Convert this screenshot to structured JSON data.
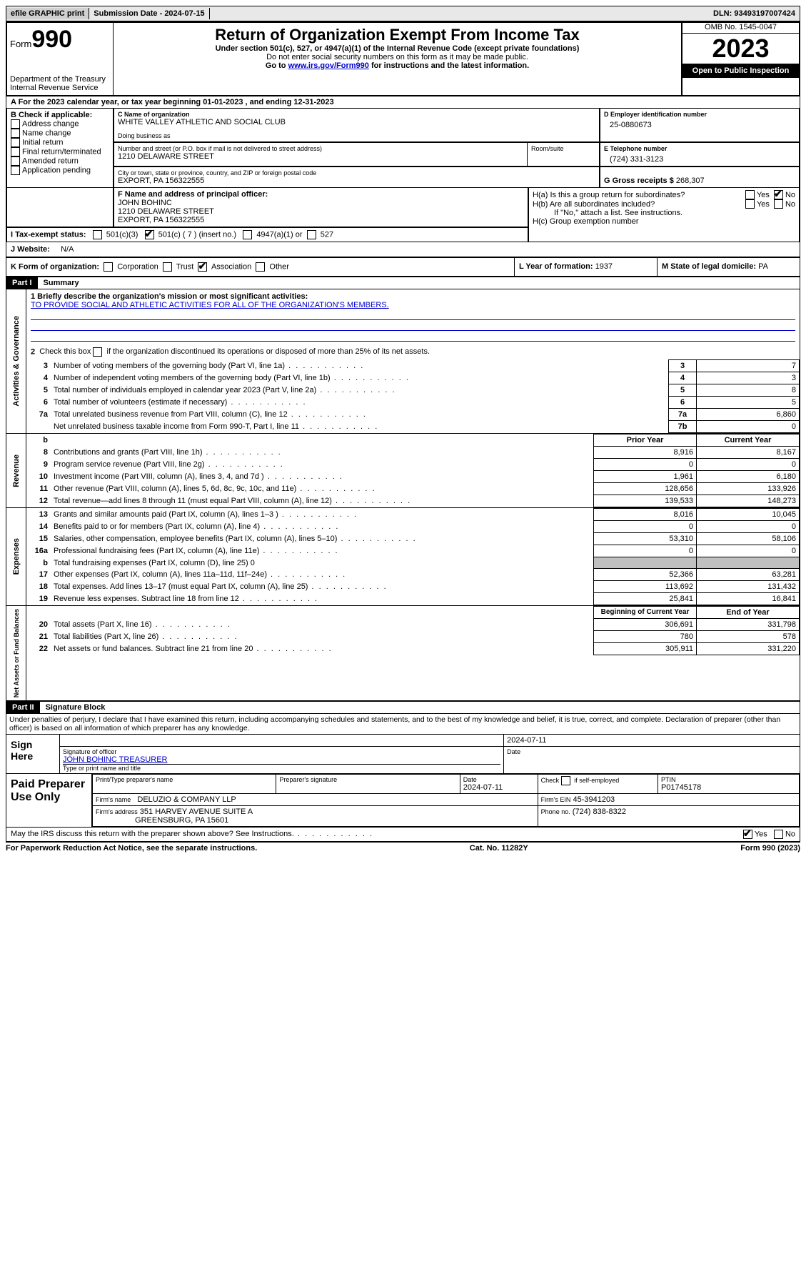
{
  "topbar": {
    "efile": "efile GRAPHIC print",
    "sub_date_label": "Submission Date - 2024-07-15",
    "dln": "DLN: 93493197007424"
  },
  "header": {
    "form_label": "Form",
    "form_num": "990",
    "dept": "Department of the Treasury\nInternal Revenue Service",
    "title": "Return of Organization Exempt From Income Tax",
    "subtitle": "Under section 501(c), 527, or 4947(a)(1) of the Internal Revenue Code (except private foundations)",
    "sub2": "Do not enter social security numbers on this form as it may be made public.",
    "goto_prefix": "Go to ",
    "goto_link": "www.irs.gov/Form990",
    "goto_suffix": " for instructions and the latest information.",
    "omb": "OMB No. 1545-0047",
    "year": "2023",
    "open_pub": "Open to Public Inspection"
  },
  "rowA": "A For the 2023 calendar year, or tax year beginning 01-01-2023    , and ending 12-31-2023",
  "boxB": {
    "label": "B Check if applicable:",
    "items": [
      "Address change",
      "Name change",
      "Initial return",
      "Final return/terminated",
      "Amended return",
      "Application pending"
    ]
  },
  "boxC": {
    "name_label": "C Name of organization",
    "name": "WHITE VALLEY ATHLETIC AND SOCIAL CLUB",
    "dba_label": "Doing business as",
    "addr_label": "Number and street (or P.O. box if mail is not delivered to street address)",
    "addr": "1210 DELAWARE STREET",
    "room_label": "Room/suite",
    "city_label": "City or town, state or province, country, and ZIP or foreign postal code",
    "city": "EXPORT, PA  156322555"
  },
  "boxD": {
    "label": "D Employer identification number",
    "value": "25-0880673"
  },
  "boxE": {
    "label": "E Telephone number",
    "value": "(724) 331-3123"
  },
  "boxG": {
    "label": "G Gross receipts $",
    "value": "268,307"
  },
  "boxF": {
    "label": "F  Name and address of principal officer:",
    "name": "JOHN BOHINC",
    "addr1": "1210 DELAWARE STREET",
    "addr2": "EXPORT, PA  156322555"
  },
  "boxH": {
    "ha": "H(a)  Is this a group return for subordinates?",
    "hb": "H(b)  Are all subordinates included?",
    "hb_note": "If \"No,\" attach a list. See instructions.",
    "hc": "H(c)  Group exemption number",
    "yes": "Yes",
    "no": "No"
  },
  "boxI": {
    "label": "I  Tax-exempt status:",
    "opts": [
      "501(c)(3)",
      "501(c) ( 7 ) (insert no.)",
      "4947(a)(1) or",
      "527"
    ]
  },
  "boxJ": {
    "label": "J  Website:",
    "value": "N/A"
  },
  "boxK": {
    "label": "K Form of organization:",
    "opts": [
      "Corporation",
      "Trust",
      "Association",
      "Other"
    ]
  },
  "boxL": {
    "label": "L Year of formation:",
    "value": "1937"
  },
  "boxM": {
    "label": "M State of legal domicile:",
    "value": "PA"
  },
  "part1": {
    "label": "Part I",
    "title": "Summary"
  },
  "mission": {
    "q": "1   Briefly describe the organization's mission or most significant activities:",
    "text": "TO PROVIDE SOCIAL AND ATHLETIC ACTIVITIES FOR ALL OF THE ORGANIZATION'S MEMBERS."
  },
  "gov": {
    "side": "Activities & Governance",
    "l2": "Check this box        if the organization discontinued its operations or disposed of more than 25% of its net assets.",
    "rows": [
      {
        "n": "3",
        "t": "Number of voting members of the governing body (Part VI, line 1a)",
        "k": "3",
        "v": "7"
      },
      {
        "n": "4",
        "t": "Number of independent voting members of the governing body (Part VI, line 1b)",
        "k": "4",
        "v": "3"
      },
      {
        "n": "5",
        "t": "Total number of individuals employed in calendar year 2023 (Part V, line 2a)",
        "k": "5",
        "v": "8"
      },
      {
        "n": "6",
        "t": "Total number of volunteers (estimate if necessary)",
        "k": "6",
        "v": "5"
      },
      {
        "n": "7a",
        "t": "Total unrelated business revenue from Part VIII, column (C), line 12",
        "k": "7a",
        "v": "6,860"
      },
      {
        "n": "",
        "t": "Net unrelated business taxable income from Form 990-T, Part I, line 11",
        "k": "7b",
        "v": "0"
      }
    ]
  },
  "rev": {
    "side": "Revenue",
    "h_prior": "Prior Year",
    "h_curr": "Current Year",
    "rows": [
      {
        "n": "8",
        "t": "Contributions and grants (Part VIII, line 1h)",
        "p": "8,916",
        "c": "8,167"
      },
      {
        "n": "9",
        "t": "Program service revenue (Part VIII, line 2g)",
        "p": "0",
        "c": "0"
      },
      {
        "n": "10",
        "t": "Investment income (Part VIII, column (A), lines 3, 4, and 7d )",
        "p": "1,961",
        "c": "6,180"
      },
      {
        "n": "11",
        "t": "Other revenue (Part VIII, column (A), lines 5, 6d, 8c, 9c, 10c, and 11e)",
        "p": "128,656",
        "c": "133,926"
      },
      {
        "n": "12",
        "t": "Total revenue—add lines 8 through 11 (must equal Part VIII, column (A), line 12)",
        "p": "139,533",
        "c": "148,273"
      }
    ]
  },
  "exp": {
    "side": "Expenses",
    "rows": [
      {
        "n": "13",
        "t": "Grants and similar amounts paid (Part IX, column (A), lines 1–3 )",
        "p": "8,016",
        "c": "10,045"
      },
      {
        "n": "14",
        "t": "Benefits paid to or for members (Part IX, column (A), line 4)",
        "p": "0",
        "c": "0"
      },
      {
        "n": "15",
        "t": "Salaries, other compensation, employee benefits (Part IX, column (A), lines 5–10)",
        "p": "53,310",
        "c": "58,106"
      },
      {
        "n": "16a",
        "t": "Professional fundraising fees (Part IX, column (A), line 11e)",
        "p": "0",
        "c": "0"
      },
      {
        "n": "b",
        "t": "Total fundraising expenses (Part IX, column (D), line 25) 0",
        "p": "",
        "c": ""
      },
      {
        "n": "17",
        "t": "Other expenses (Part IX, column (A), lines 11a–11d, 11f–24e)",
        "p": "52,366",
        "c": "63,281"
      },
      {
        "n": "18",
        "t": "Total expenses. Add lines 13–17 (must equal Part IX, column (A), line 25)",
        "p": "113,692",
        "c": "131,432"
      },
      {
        "n": "19",
        "t": "Revenue less expenses. Subtract line 18 from line 12",
        "p": "25,841",
        "c": "16,841"
      }
    ]
  },
  "net": {
    "side": "Net Assets or Fund Balances",
    "h_beg": "Beginning of Current Year",
    "h_end": "End of Year",
    "rows": [
      {
        "n": "20",
        "t": "Total assets (Part X, line 16)",
        "p": "306,691",
        "c": "331,798"
      },
      {
        "n": "21",
        "t": "Total liabilities (Part X, line 26)",
        "p": "780",
        "c": "578"
      },
      {
        "n": "22",
        "t": "Net assets or fund balances. Subtract line 21 from line 20",
        "p": "305,911",
        "c": "331,220"
      }
    ]
  },
  "part2": {
    "label": "Part II",
    "title": "Signature Block"
  },
  "penalty": "Under penalties of perjury, I declare that I have examined this return, including accompanying schedules and statements, and to the best of my knowledge and belief, it is true, correct, and complete. Declaration of preparer (other than officer) is based on all information of which preparer has any knowledge.",
  "sign": {
    "here": "Sign Here",
    "date": "2024-07-11",
    "sig_label": "Signature of officer",
    "name": "JOHN BOHINC  TREASURER",
    "type_label": "Type or print name and title",
    "date_label": "Date"
  },
  "prep": {
    "label": "Paid Preparer Use Only",
    "h_name": "Print/Type preparer's name",
    "h_sig": "Preparer's signature",
    "h_date": "Date",
    "date": "2024-07-11",
    "check_label": "Check         if self-employed",
    "ptin_label": "PTIN",
    "ptin": "P01745178",
    "firm_name_label": "Firm's name",
    "firm_name": "DELUZIO & COMPANY LLP",
    "firm_ein_label": "Firm's EIN",
    "firm_ein": "45-3941203",
    "firm_addr_label": "Firm's address",
    "firm_addr1": "351 HARVEY AVENUE SUITE A",
    "firm_addr2": "GREENSBURG, PA  15601",
    "phone_label": "Phone no.",
    "phone": "(724) 838-8322"
  },
  "discuss": "May the IRS discuss this return with the preparer shown above? See Instructions.",
  "footer": {
    "left": "For Paperwork Reduction Act Notice, see the separate instructions.",
    "mid": "Cat. No. 11282Y",
    "right_a": "Form ",
    "right_b": "990",
    "right_c": " (2023)"
  }
}
